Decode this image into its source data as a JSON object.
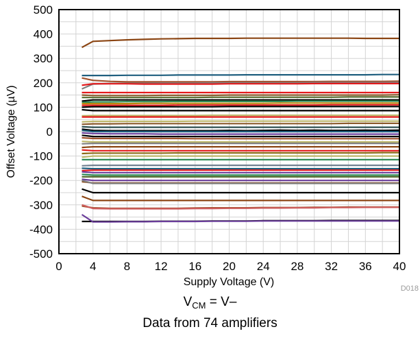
{
  "chart_data": {
    "type": "line",
    "xlabel": "Supply Voltage (V)",
    "ylabel": "Offset Voltage (µV)",
    "xlim": [
      0,
      40
    ],
    "ylim": [
      -500,
      500
    ],
    "x_ticks": [
      "0",
      "4",
      "8",
      "12",
      "16",
      "20",
      "24",
      "28",
      "32",
      "36",
      "40"
    ],
    "y_ticks": [
      "500",
      "400",
      "300",
      "200",
      "100",
      "0",
      "-100",
      "-200",
      "-300",
      "-400",
      "-500"
    ],
    "grid": true,
    "legend": "none",
    "x": [
      2.7,
      4,
      6,
      8,
      10,
      12,
      14,
      16,
      18,
      20,
      22,
      24,
      26,
      28,
      30,
      32,
      34,
      36,
      38,
      40
    ],
    "series": [
      {
        "color": "#8B4513",
        "values": [
          345,
          370,
          373,
          376,
          378,
          380,
          381,
          382,
          382,
          382,
          383,
          383,
          383,
          383,
          383,
          383,
          383,
          382,
          382,
          382
        ]
      },
      {
        "color": "#1F5F7F",
        "values": [
          230,
          230,
          230,
          231,
          231,
          231,
          232,
          232,
          232,
          232,
          233,
          233,
          233,
          233,
          233,
          233,
          233,
          233,
          234,
          234
        ]
      },
      {
        "color": "#A0522D",
        "values": [
          220,
          210,
          206,
          204,
          204,
          204,
          204,
          204,
          204,
          205,
          205,
          205,
          205,
          205,
          205,
          206,
          206,
          206,
          206,
          207
        ]
      },
      {
        "color": "#808080",
        "values": [
          175,
          195,
          197,
          198,
          198,
          199,
          199,
          199,
          200,
          200,
          200,
          200,
          200,
          200,
          201,
          201,
          201,
          201,
          201,
          202
        ]
      },
      {
        "color": "#E31A1C",
        "values": [
          190,
          196,
          196,
          196,
          195,
          195,
          195,
          195,
          195,
          196,
          196,
          196,
          196,
          196,
          197,
          197,
          197,
          197,
          197,
          197
        ]
      },
      {
        "color": "#E31A1C",
        "values": [
          160,
          160,
          160,
          160,
          160,
          160,
          160,
          160,
          160,
          160,
          160,
          160,
          160,
          160,
          160,
          160,
          160,
          160,
          160,
          160
        ]
      },
      {
        "color": "#8B5A2B",
        "values": [
          150,
          148,
          148,
          148,
          148,
          149,
          149,
          149,
          149,
          150,
          150,
          150,
          150,
          150,
          150,
          150,
          150,
          150,
          150,
          151
        ]
      },
      {
        "color": "#556B2F",
        "values": [
          140,
          140,
          140,
          140,
          140,
          140,
          140,
          140,
          141,
          141,
          141,
          141,
          141,
          141,
          141,
          141,
          142,
          142,
          142,
          142
        ]
      },
      {
        "color": "#000000",
        "values": [
          125,
          130,
          130,
          130,
          130,
          130,
          130,
          130,
          130,
          130,
          130,
          130,
          130,
          130,
          130,
          130,
          130,
          130,
          130,
          130
        ]
      },
      {
        "color": "#2E8B57",
        "values": [
          120,
          122,
          122,
          123,
          123,
          123,
          124,
          124,
          124,
          124,
          124,
          124,
          124,
          125,
          125,
          125,
          125,
          125,
          125,
          125
        ]
      },
      {
        "color": "#B8860B",
        "values": [
          115,
          115,
          115,
          115,
          116,
          116,
          116,
          116,
          116,
          116,
          116,
          116,
          117,
          117,
          117,
          117,
          117,
          117,
          117,
          117
        ]
      },
      {
        "color": "#E31A1C",
        "values": [
          108,
          108,
          108,
          108,
          108,
          108,
          109,
          109,
          109,
          109,
          109,
          109,
          109,
          109,
          109,
          110,
          110,
          110,
          110,
          110
        ]
      },
      {
        "color": "#000000",
        "values": [
          100,
          102,
          102,
          102,
          102,
          102,
          102,
          102,
          102,
          103,
          103,
          103,
          103,
          103,
          103,
          103,
          103,
          103,
          103,
          103
        ]
      },
      {
        "color": "#000000",
        "values": [
          90,
          86,
          86,
          86,
          86,
          86,
          86,
          86,
          86,
          86,
          86,
          86,
          86,
          86,
          86,
          86,
          86,
          86,
          86,
          86
        ]
      },
      {
        "color": "#BDB76B",
        "values": [
          65,
          66,
          66,
          66,
          66,
          66,
          66,
          66,
          67,
          67,
          67,
          67,
          67,
          67,
          67,
          67,
          67,
          67,
          67,
          67
        ]
      },
      {
        "color": "#E31A1C",
        "values": [
          60,
          60,
          60,
          60,
          60,
          60,
          60,
          60,
          60,
          60,
          60,
          60,
          60,
          60,
          60,
          60,
          60,
          60,
          60,
          60
        ]
      },
      {
        "color": "#BDB76B",
        "values": [
          40,
          42,
          42,
          42,
          42,
          42,
          42,
          43,
          43,
          43,
          43,
          43,
          43,
          43,
          43,
          43,
          43,
          43,
          43,
          43
        ]
      },
      {
        "color": "#8B5A2B",
        "values": [
          30,
          32,
          32,
          33,
          33,
          33,
          33,
          33,
          33,
          33,
          33,
          33,
          33,
          33,
          33,
          33,
          34,
          34,
          34,
          34
        ]
      },
      {
        "color": "#2F4F4F",
        "values": [
          20,
          18,
          18,
          18,
          18,
          18,
          18,
          18,
          18,
          18,
          18,
          18,
          18,
          18,
          18,
          18,
          18,
          18,
          18,
          18
        ]
      },
      {
        "color": "#000000",
        "values": [
          10,
          5,
          4,
          4,
          4,
          4,
          4,
          4,
          4,
          5,
          4,
          5,
          6,
          5,
          6,
          5,
          5,
          6,
          5,
          6
        ]
      },
      {
        "color": "#1F5F7F",
        "values": [
          5,
          0,
          0,
          0,
          0,
          0,
          0,
          0,
          0,
          0,
          0,
          0,
          0,
          0,
          0,
          0,
          0,
          0,
          0,
          0
        ]
      },
      {
        "color": "#6A3D9A",
        "values": [
          -5,
          -8,
          -9,
          -9,
          -9,
          -10,
          -10,
          -10,
          -10,
          -10,
          -10,
          -10,
          -10,
          -10,
          -10,
          -10,
          -10,
          -10,
          -10,
          -10
        ]
      },
      {
        "color": "#000000",
        "values": [
          -15,
          -20,
          -20,
          -20,
          -20,
          -20,
          -20,
          -20,
          -20,
          -20,
          -20,
          -20,
          -20,
          -20,
          -20,
          -20,
          -20,
          -20,
          -20,
          -20
        ]
      },
      {
        "color": "#A0522D",
        "values": [
          -25,
          -28,
          -28,
          -28,
          -28,
          -28,
          -28,
          -29,
          -29,
          -29,
          -29,
          -29,
          -29,
          -29,
          -29,
          -29,
          -29,
          -29,
          -29,
          -29
        ]
      },
      {
        "color": "#BDB76B",
        "values": [
          -40,
          -42,
          -42,
          -42,
          -42,
          -42,
          -42,
          -42,
          -42,
          -42,
          -42,
          -42,
          -42,
          -42,
          -42,
          -42,
          -42,
          -42,
          -42,
          -42
        ]
      },
      {
        "color": "#808080",
        "values": [
          -50,
          -48,
          -48,
          -48,
          -48,
          -48,
          -48,
          -48,
          -48,
          -48,
          -48,
          -48,
          -48,
          -48,
          -48,
          -48,
          -48,
          -48,
          -48,
          -48
        ]
      },
      {
        "color": "#8B4513",
        "values": [
          -65,
          -62,
          -62,
          -62,
          -62,
          -62,
          -62,
          -62,
          -62,
          -62,
          -62,
          -62,
          -62,
          -62,
          -62,
          -62,
          -62,
          -62,
          -62,
          -62
        ]
      },
      {
        "color": "#E31A1C",
        "values": [
          -75,
          -78,
          -78,
          -78,
          -78,
          -78,
          -78,
          -78,
          -78,
          -78,
          -78,
          -78,
          -78,
          -78,
          -78,
          -78,
          -78,
          -78,
          -78,
          -78
        ]
      },
      {
        "color": "#8B6914",
        "values": [
          -90,
          -88,
          -88,
          -88,
          -88,
          -88,
          -87,
          -87,
          -87,
          -87,
          -87,
          -87,
          -87,
          -87,
          -87,
          -87,
          -87,
          -87,
          -86,
          -86
        ]
      },
      {
        "color": "#BDB76B",
        "values": [
          -105,
          -100,
          -100,
          -100,
          -100,
          -100,
          -100,
          -100,
          -100,
          -100,
          -100,
          -100,
          -100,
          -100,
          -100,
          -100,
          -100,
          -100,
          -100,
          -100
        ]
      },
      {
        "color": "#2E8B57",
        "values": [
          -115,
          -115,
          -115,
          -115,
          -115,
          -115,
          -115,
          -115,
          -115,
          -115,
          -115,
          -115,
          -115,
          -115,
          -115,
          -115,
          -115,
          -115,
          -115,
          -115
        ]
      },
      {
        "color": "#708090",
        "values": [
          -140,
          -138,
          -138,
          -138,
          -138,
          -138,
          -138,
          -138,
          -138,
          -138,
          -138,
          -138,
          -138,
          -138,
          -138,
          -138,
          -138,
          -138,
          -138,
          -138
        ]
      },
      {
        "color": "#1F5F7F",
        "values": [
          -150,
          -152,
          -152,
          -152,
          -152,
          -152,
          -152,
          -152,
          -152,
          -152,
          -152,
          -152,
          -152,
          -152,
          -152,
          -152,
          -152,
          -152,
          -152,
          -152
        ]
      },
      {
        "color": "#E31A1C",
        "values": [
          -160,
          -158,
          -158,
          -158,
          -158,
          -158,
          -158,
          -158,
          -158,
          -158,
          -158,
          -158,
          -158,
          -158,
          -158,
          -158,
          -158,
          -158,
          -158,
          -158
        ]
      },
      {
        "color": "#6A3D9A",
        "values": [
          -165,
          -168,
          -168,
          -168,
          -168,
          -168,
          -168,
          -168,
          -168,
          -168,
          -168,
          -168,
          -168,
          -168,
          -168,
          -168,
          -168,
          -168,
          -168,
          -168
        ]
      },
      {
        "color": "#2E8B57",
        "values": [
          -175,
          -178,
          -178,
          -178,
          -178,
          -178,
          -178,
          -178,
          -178,
          -178,
          -178,
          -178,
          -178,
          -178,
          -178,
          -178,
          -178,
          -178,
          -178,
          -178
        ]
      },
      {
        "color": "#556B2F",
        "values": [
          -185,
          -185,
          -185,
          -185,
          -185,
          -185,
          -185,
          -185,
          -185,
          -185,
          -185,
          -185,
          -185,
          -185,
          -185,
          -185,
          -185,
          -185,
          -185,
          -185
        ]
      },
      {
        "color": "#6A3D9A",
        "values": [
          -195,
          -200,
          -200,
          -200,
          -200,
          -200,
          -200,
          -200,
          -200,
          -200,
          -200,
          -200,
          -200,
          -200,
          -200,
          -200,
          -200,
          -200,
          -200,
          -200
        ]
      },
      {
        "color": "#8B4513",
        "values": [
          -205,
          -210,
          -210,
          -210,
          -210,
          -210,
          -210,
          -210,
          -210,
          -210,
          -210,
          -210,
          -210,
          -210,
          -210,
          -210,
          -210,
          -210,
          -210,
          -210
        ]
      },
      {
        "color": "#808080",
        "values": [
          -200,
          -212,
          -212,
          -212,
          -212,
          -212,
          -212,
          -212,
          -212,
          -212,
          -212,
          -212,
          -212,
          -212,
          -212,
          -212,
          -212,
          -212,
          -212,
          -212
        ]
      },
      {
        "color": "#000000",
        "values": [
          -235,
          -250,
          -250,
          -250,
          -250,
          -250,
          -250,
          -250,
          -250,
          -250,
          -250,
          -250,
          -250,
          -250,
          -250,
          -250,
          -250,
          -250,
          -250,
          -250
        ]
      },
      {
        "color": "#8B4513",
        "values": [
          -265,
          -282,
          -282,
          -282,
          -282,
          -282,
          -282,
          -282,
          -282,
          -282,
          -282,
          -282,
          -282,
          -282,
          -282,
          -282,
          -282,
          -282,
          -282,
          -282
        ]
      },
      {
        "color": "#A0522D",
        "values": [
          -305,
          -312,
          -314,
          -314,
          -314,
          -314,
          -314,
          -313,
          -312,
          -312,
          -312,
          -311,
          -311,
          -311,
          -310,
          -310,
          -309,
          -309,
          -309,
          -309
        ]
      },
      {
        "color": "#CD5C5C",
        "values": [
          -300,
          -315,
          -316,
          -316,
          -316,
          -316,
          -316,
          -315,
          -315,
          -314,
          -314,
          -313,
          -313,
          -312,
          -312,
          -311,
          -311,
          -310,
          -310,
          -310
        ]
      },
      {
        "color": "#000000",
        "values": [
          -368,
          -368,
          -368,
          -368,
          -368,
          -367,
          -367,
          -367,
          -366,
          -366,
          -366,
          -365,
          -365,
          -365,
          -365,
          -364,
          -364,
          -364,
          -364,
          -364
        ]
      },
      {
        "color": "#6A3D9A",
        "values": [
          -340,
          -370,
          -370,
          -369,
          -369,
          -368,
          -368,
          -368,
          -367,
          -367,
          -367,
          -366,
          -366,
          -366,
          -366,
          -366,
          -366,
          -366,
          -366,
          -366
        ]
      }
    ]
  },
  "diagram_code": "D018",
  "caption": {
    "line1_prefix": "V",
    "line1_sub": "CM",
    "line1_suffix": " = V–",
    "line2": "Data from 74 amplifiers"
  }
}
